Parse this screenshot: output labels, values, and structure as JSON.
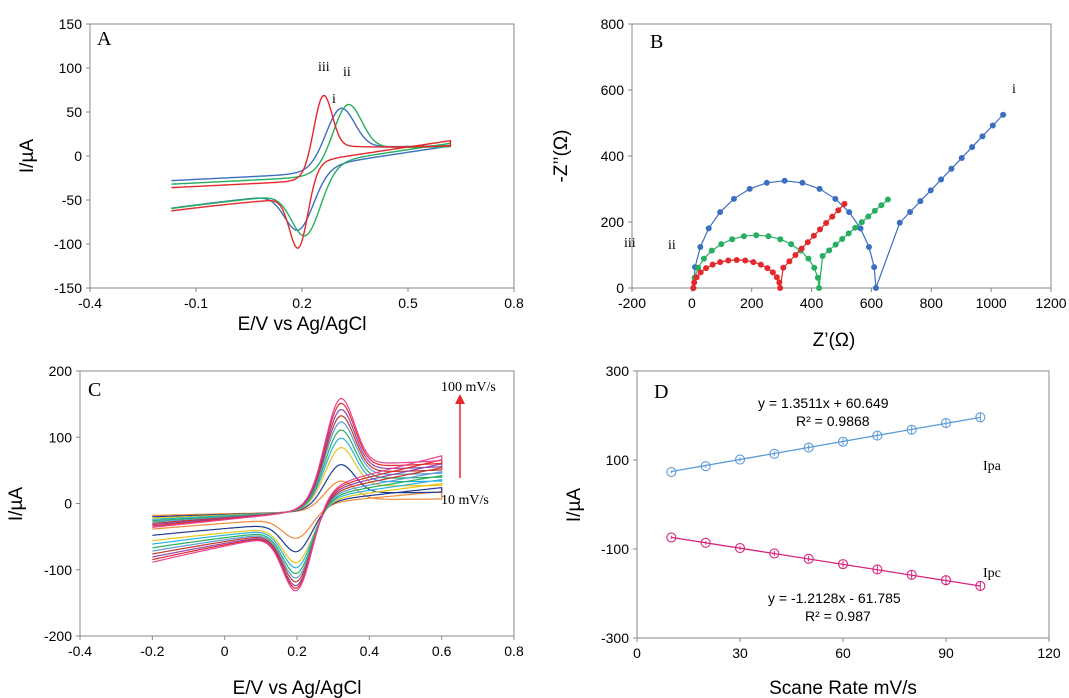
{
  "colors": {
    "blue": "#3c6fbf",
    "red": "#e5282c",
    "green": "#27ae60",
    "orange": "#f08a3a",
    "magenta": "#d6247e",
    "lightblue": "#5b9bd5",
    "darkred": "#c0392b",
    "navy": "#1f3a93",
    "yellow": "#e6c619",
    "cyan": "#2bb3d9",
    "purple": "#8e44ad",
    "teal": "#16a085",
    "pink": "#e84393"
  },
  "chart_data": [
    {
      "panel": "A",
      "type": "line",
      "title": "",
      "xlabel": "E/V vs Ag/AgCl",
      "ylabel": "I/µA",
      "xlim": [
        -0.4,
        0.8
      ],
      "ylim": [
        -150,
        150
      ],
      "xticks": [
        "-0.4",
        "-0.1",
        "0.2",
        "0.5",
        "0.8"
      ],
      "yticks": [
        "-150",
        "-100",
        "-50",
        "0",
        "50",
        "100",
        "150"
      ],
      "grid": false,
      "annotations": [
        "iii",
        "ii",
        "i"
      ],
      "series": [
        {
          "name": "i",
          "color": "blue",
          "Epa": 0.31,
          "Ipa": 75,
          "Epc": 0.19,
          "Ipc": -72
        },
        {
          "name": "ii",
          "color": "green",
          "Epa": 0.33,
          "Ipa": 83,
          "Epc": 0.21,
          "Ipc": -83
        },
        {
          "name": "iii",
          "color": "red",
          "Epa": 0.26,
          "Ipa": 100,
          "Epc": 0.19,
          "Ipc": -100
        }
      ],
      "sweep": {
        "start": -0.17,
        "end": 0.62
      }
    },
    {
      "panel": "B",
      "type": "scatter",
      "title": "",
      "xlabel": "Z’(Ω)",
      "ylabel": "-Z’’(Ω)",
      "xlim": [
        -200,
        1200
      ],
      "ylim": [
        0,
        800
      ],
      "xticks": [
        "-200",
        "0",
        "200",
        "400",
        "600",
        "800",
        "1000",
        "1200"
      ],
      "yticks": [
        "0",
        "200",
        "400",
        "600",
        "800"
      ],
      "grid": false,
      "annotations": [
        "i",
        "ii",
        "iii"
      ],
      "series": [
        {
          "name": "i",
          "color": "blue",
          "Rct": 610,
          "semicircle_top": 325,
          "tail": [
            [
              660,
              165
            ],
            [
              1040,
              525
            ]
          ]
        },
        {
          "name": "ii",
          "color": "green",
          "Rct": 420,
          "semicircle_top": 160,
          "tail": [
            [
              415,
              80
            ],
            [
              655,
              268
            ]
          ]
        },
        {
          "name": "iii",
          "color": "red",
          "Rct": 290,
          "semicircle_top": 85,
          "tail": [
            [
              285,
              42
            ],
            [
              510,
              255
            ]
          ]
        }
      ]
    },
    {
      "panel": "C",
      "type": "line",
      "title": "",
      "xlabel": "E/V vs Ag/AgCl",
      "ylabel": "I/µA",
      "xlim": [
        -0.4,
        0.8
      ],
      "ylim": [
        -200,
        200
      ],
      "xticks": [
        "-0.4",
        "-0.2",
        "0",
        "0.2",
        "0.4",
        "0.6",
        "0.8"
      ],
      "yticks": [
        "-200",
        "-100",
        "0",
        "100",
        "200"
      ],
      "grid": false,
      "annotations": [
        "100 mV/s",
        "10 mV/s"
      ],
      "scan_rates": [
        10,
        20,
        30,
        40,
        50,
        60,
        70,
        80,
        90,
        100
      ],
      "Ipa": [
        47,
        72,
        98,
        112,
        124,
        136,
        145,
        154,
        163,
        170
      ],
      "Ipc": [
        -52,
        -75,
        -94,
        -104,
        -115,
        -124,
        -132,
        -140,
        -146,
        -152
      ],
      "Epa": 0.32,
      "Epc": 0.2,
      "sweep": {
        "start": -0.2,
        "end": 0.6
      }
    },
    {
      "panel": "D",
      "type": "scatter",
      "title": "",
      "xlabel": "Scane Rate mV/s",
      "ylabel": "I/µA",
      "xlim": [
        0,
        120
      ],
      "ylim": [
        -300,
        300
      ],
      "xticks": [
        "0",
        "30",
        "60",
        "90",
        "120"
      ],
      "yticks": [
        "-300",
        "-100",
        "100",
        "300"
      ],
      "grid": false,
      "x": [
        10,
        20,
        30,
        40,
        50,
        60,
        70,
        80,
        90,
        100
      ],
      "series": [
        {
          "name": "Ipa",
          "color": "lightblue",
          "values": [
            73,
            86,
            101,
            114,
            128,
            141,
            155,
            168,
            183,
            196
          ],
          "fit": {
            "slope": 1.3511,
            "intercept": 60.649
          },
          "equation": "y = 1.3511x + 60.649",
          "r2": "R² = 0.9868"
        },
        {
          "name": "Ipc",
          "color": "magenta",
          "values": [
            -74,
            -86,
            -98,
            -110,
            -122,
            -134,
            -146,
            -158,
            -170,
            -183
          ],
          "fit": {
            "slope": -1.2128,
            "intercept": -61.785
          },
          "equation": "y = -1.2128x - 61.785",
          "r2": "R² = 0.987"
        }
      ]
    }
  ]
}
